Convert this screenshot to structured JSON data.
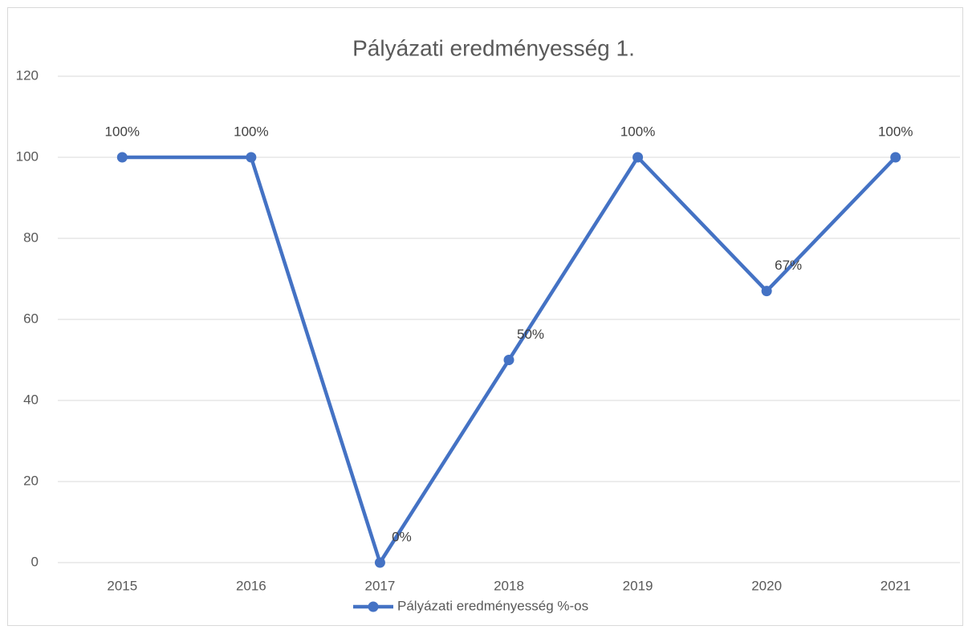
{
  "chart_data": {
    "type": "line",
    "title": "Pályázati eredményesség 1.",
    "categories": [
      "2015",
      "2016",
      "2017",
      "2018",
      "2019",
      "2020",
      "2021"
    ],
    "series": [
      {
        "name": "Pályázati eredményesség %-os",
        "color": "#4472c4",
        "values": [
          100,
          100,
          0,
          50,
          100,
          67,
          100
        ],
        "value_labels": [
          "100%",
          "100%",
          "0%",
          "50%",
          "100%",
          "67%",
          "100%"
        ]
      }
    ],
    "ylim": [
      0,
      120
    ],
    "yticks": [
      0,
      20,
      40,
      60,
      80,
      100,
      120
    ],
    "grid": true,
    "legend": "bottom"
  }
}
